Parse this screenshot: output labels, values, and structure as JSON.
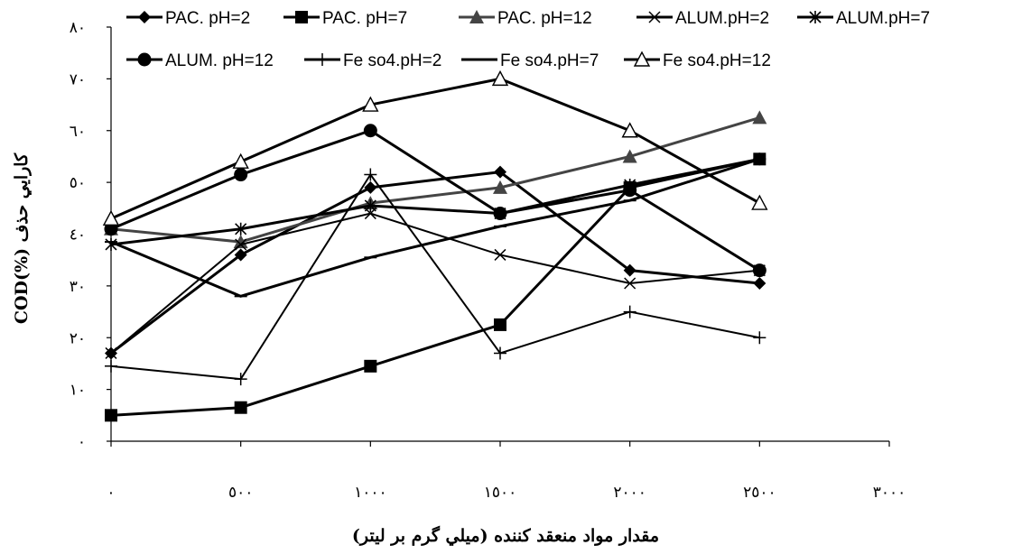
{
  "chart_data": {
    "type": "line",
    "xlabel": "مقدار مواد منعقد كننده  (ميلي گرم بر ليتر)",
    "ylabel": "COD(%) كارايي حذف",
    "x_tick_labels": [
      "٠",
      "٥٠٠",
      "١٠٠٠",
      "١٥٠٠",
      "٢٠٠٠",
      "٢٥٠٠",
      "٣٠٠٠"
    ],
    "y_tick_labels": [
      "٠",
      "١٠",
      "٢٠",
      "٣٠",
      "٤٠",
      "٥٠",
      "٦٠",
      "٧٠",
      "٨٠"
    ],
    "x": [
      0,
      500,
      1000,
      1500,
      2000,
      2500
    ],
    "xlim": [
      0,
      3000
    ],
    "ylim": [
      0,
      80
    ],
    "grid": false,
    "legend_position": "top",
    "series": [
      {
        "name": "PAC. pH=2",
        "marker": "diamond",
        "color": "#000000",
        "values": [
          17,
          36,
          49,
          52,
          33,
          30.5
        ]
      },
      {
        "name": "PAC. pH=7",
        "marker": "square",
        "color": "#000000",
        "values": [
          5,
          6.5,
          14.5,
          22.5,
          49,
          54.5
        ]
      },
      {
        "name": "PAC. pH=12",
        "marker": "triangle",
        "color": "#444444",
        "values": [
          41,
          38.5,
          46,
          49,
          55,
          62.5
        ]
      },
      {
        "name": "ALUM.pH=2",
        "marker": "x",
        "color": "#000000",
        "values": [
          17,
          38,
          44,
          36,
          30.5,
          33
        ]
      },
      {
        "name": "ALUM.pH=7",
        "marker": "asterisk",
        "color": "#000000",
        "values": [
          38,
          41,
          45.5,
          44,
          49.5,
          54.5
        ]
      },
      {
        "name": "ALUM. pH=12",
        "marker": "circle",
        "color": "#000000",
        "values": [
          41,
          51.5,
          60,
          44,
          48.5,
          33
        ]
      },
      {
        "name": "Fe so4.pH=2",
        "marker": "plus",
        "color": "#000000",
        "values": [
          14.5,
          12,
          51.5,
          17,
          25,
          20
        ]
      },
      {
        "name": "Fe so4.pH=7",
        "marker": "dash",
        "color": "#000000",
        "values": [
          38.5,
          28,
          35.5,
          41.5,
          46.5,
          54.5
        ]
      },
      {
        "name": "Fe so4.pH=12",
        "marker": "triangle-open",
        "color": "#000000",
        "values": [
          43,
          54,
          65,
          70,
          60,
          46
        ]
      }
    ]
  }
}
